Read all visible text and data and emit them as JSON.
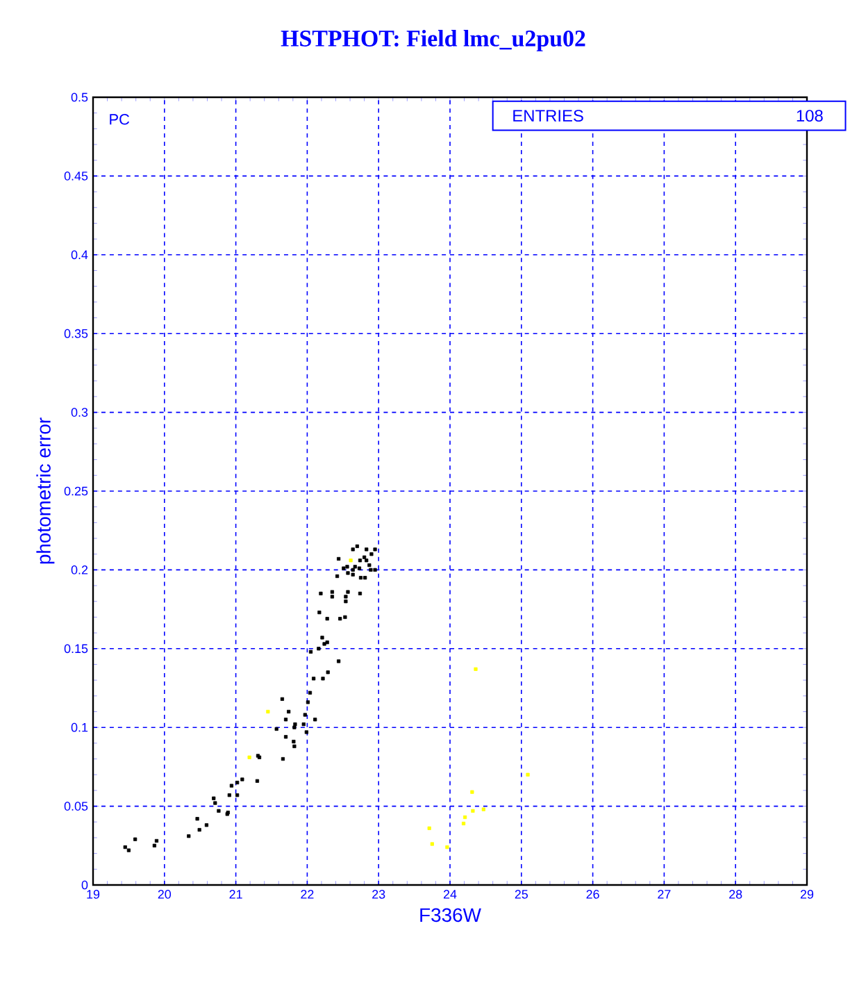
{
  "chart_data": {
    "type": "scatter",
    "title": "HSTPHOT: Field lmc_u2pu02",
    "xlabel": "F336W",
    "ylabel": "photometric error",
    "annotations": [
      "PC",
      "ENTRIES",
      "108"
    ],
    "xlim": [
      19,
      29
    ],
    "ylim": [
      0,
      0.5
    ],
    "xticks": [
      19,
      20,
      21,
      22,
      23,
      24,
      25,
      26,
      27,
      28,
      29
    ],
    "yticks": [
      0,
      0.05,
      0.1,
      0.15,
      0.2,
      0.25,
      0.3,
      0.35,
      0.4,
      0.45,
      0.5
    ],
    "grid": true,
    "marker": "square",
    "series": [
      {
        "color": "#000000",
        "x": [
          19.45,
          19.5,
          19.59,
          19.86,
          19.89,
          20.34,
          20.46,
          20.49,
          20.59,
          20.69,
          20.71,
          20.76,
          20.88,
          20.89,
          20.91,
          20.94,
          21.02,
          21.02,
          21.09,
          21.3,
          21.31,
          21.33,
          21.65,
          21.66,
          21.57,
          21.7,
          21.7,
          21.74,
          21.81,
          21.82,
          21.83,
          21.82,
          21.95,
          21.99,
          21.97,
          22.01,
          22.04,
          22.11,
          22.09,
          22.22,
          22.29,
          22.05,
          22.16,
          22.21,
          22.24,
          22.28,
          22.17,
          22.28,
          22.19,
          22.35,
          22.35,
          22.44,
          22.44,
          22.64,
          22.7,
          22.74,
          22.8,
          22.83,
          22.95,
          22.9,
          22.83,
          22.87,
          22.89,
          22.95,
          22.81,
          22.75,
          22.67,
          22.73,
          22.64,
          22.64,
          22.56,
          22.57,
          22.51,
          22.42,
          22.57,
          22.74,
          22.54,
          22.54,
          22.46,
          22.53
        ],
        "values": [
          0.024,
          0.022,
          0.029,
          0.025,
          0.028,
          0.031,
          0.042,
          0.035,
          0.038,
          0.055,
          0.052,
          0.047,
          0.045,
          0.046,
          0.057,
          0.063,
          0.057,
          0.065,
          0.067,
          0.066,
          0.082,
          0.081,
          0.118,
          0.08,
          0.099,
          0.094,
          0.105,
          0.11,
          0.091,
          0.088,
          0.102,
          0.1,
          0.102,
          0.097,
          0.108,
          0.116,
          0.122,
          0.105,
          0.131,
          0.131,
          0.135,
          0.148,
          0.15,
          0.157,
          0.153,
          0.154,
          0.173,
          0.169,
          0.185,
          0.186,
          0.183,
          0.142,
          0.207,
          0.213,
          0.215,
          0.206,
          0.208,
          0.213,
          0.213,
          0.21,
          0.206,
          0.203,
          0.2,
          0.2,
          0.195,
          0.195,
          0.202,
          0.201,
          0.2,
          0.197,
          0.202,
          0.198,
          0.201,
          0.196,
          0.186,
          0.185,
          0.18,
          0.183,
          0.169,
          0.17
        ]
      },
      {
        "color": "#ffff00",
        "x": [
          21.19,
          21.45,
          22.61,
          24.36,
          25.09,
          24.31,
          24.32,
          24.47,
          24.21,
          24.19,
          23.71,
          23.75,
          23.96
        ],
        "values": [
          0.081,
          0.11,
          0.206,
          0.137,
          0.07,
          0.059,
          0.047,
          0.048,
          0.043,
          0.039,
          0.036,
          0.026,
          0.024
        ]
      }
    ]
  }
}
